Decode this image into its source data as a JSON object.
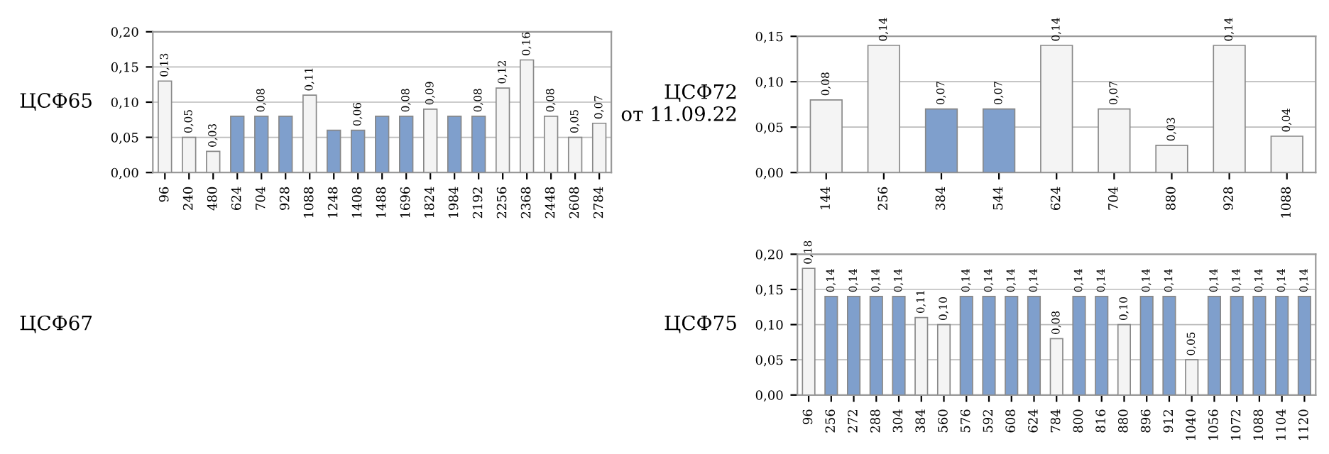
{
  "chart_data": [
    {
      "type": "bar",
      "ylabel": "ЦСФ65",
      "categories": [
        "96",
        "240",
        "480",
        "624",
        "704",
        "928",
        "1088",
        "1248",
        "1408",
        "1488",
        "1696",
        "1824",
        "1984",
        "2192",
        "2256",
        "2368",
        "2448",
        "2608",
        "2784"
      ],
      "values": [
        0.13,
        0.05,
        0.03,
        0.08,
        0.08,
        0.08,
        0.11,
        0.06,
        0.06,
        0.08,
        0.08,
        0.09,
        0.08,
        0.08,
        0.12,
        0.16,
        0.08,
        0.05,
        0.07
      ],
      "value_labels": [
        "0,13",
        "0,05",
        "0,03",
        null,
        "0,08",
        null,
        "0,11",
        null,
        "0,06",
        null,
        "0,08",
        "0,09",
        null,
        "0,08",
        "0,12",
        "0,16",
        "0,08",
        "0,05",
        "0,07"
      ],
      "colors": [
        "#f4f4f4",
        "#f4f4f4",
        "#f4f4f4",
        "#7f9fcc",
        "#7f9fcc",
        "#7f9fcc",
        "#f4f4f4",
        "#7f9fcc",
        "#7f9fcc",
        "#7f9fcc",
        "#7f9fcc",
        "#f4f4f4",
        "#7f9fcc",
        "#7f9fcc",
        "#f4f4f4",
        "#f4f4f4",
        "#f4f4f4",
        "#f4f4f4",
        "#f4f4f4"
      ],
      "ylim": [
        0,
        0.2
      ],
      "yticks": [
        {
          "value": 0,
          "label": "0,00"
        },
        {
          "value": 0.05,
          "label": "0,05"
        },
        {
          "value": 0.1,
          "label": "0,10"
        },
        {
          "value": 0.15,
          "label": "0,15"
        },
        {
          "value": 0.2,
          "label": "0,20"
        }
      ],
      "grid": "y"
    },
    {
      "type": "bar",
      "ylabel": "ЦСФ72\nот 11.09.22",
      "categories": [
        "144",
        "256",
        "384",
        "544",
        "624",
        "704",
        "880",
        "928",
        "1088"
      ],
      "values": [
        0.08,
        0.14,
        0.07,
        0.07,
        0.14,
        0.07,
        0.03,
        0.14,
        0.04
      ],
      "value_labels": [
        "0,08",
        "0,14",
        "0,07",
        "0,07",
        "0,14",
        "0,07",
        "0,03",
        "0,14",
        "0,04"
      ],
      "colors": [
        "#f4f4f4",
        "#f4f4f4",
        "#7f9fcc",
        "#7f9fcc",
        "#f4f4f4",
        "#f4f4f4",
        "#f4f4f4",
        "#f4f4f4",
        "#f4f4f4"
      ],
      "ylim": [
        0,
        0.15
      ],
      "yticks": [
        {
          "value": 0,
          "label": "0,00"
        },
        {
          "value": 0.05,
          "label": "0,05"
        },
        {
          "value": 0.1,
          "label": "0,10"
        },
        {
          "value": 0.15,
          "label": "0,15"
        }
      ],
      "grid": "y"
    },
    {
      "type": "other",
      "ylabel": "ЦСФ67"
    },
    {
      "type": "bar",
      "ylabel": "ЦСФ75",
      "categories": [
        "96",
        "256",
        "272",
        "288",
        "304",
        "384",
        "560",
        "576",
        "592",
        "608",
        "624",
        "784",
        "800",
        "816",
        "880",
        "896",
        "912",
        "1040",
        "1056",
        "1072",
        "1088",
        "1104",
        "1120"
      ],
      "values": [
        0.18,
        0.14,
        0.14,
        0.14,
        0.14,
        0.11,
        0.1,
        0.14,
        0.14,
        0.14,
        0.14,
        0.08,
        0.14,
        0.14,
        0.1,
        0.14,
        0.14,
        0.05,
        0.14,
        0.14,
        0.14,
        0.14,
        0.14
      ],
      "value_labels": [
        "0,18",
        "0,14",
        "0,14",
        "0,14",
        "0,14",
        "0,11",
        "0,10",
        "0,14",
        "0,14",
        "0,14",
        "0,14",
        "0,08",
        "0,14",
        "0,14",
        "0,10",
        "0,14",
        "0,14",
        "0,05",
        "0,14",
        "0,14",
        "0,14",
        "0,14",
        "0,14"
      ],
      "colors": [
        "#f4f4f4",
        "#7f9fcc",
        "#7f9fcc",
        "#7f9fcc",
        "#7f9fcc",
        "#f4f4f4",
        "#f4f4f4",
        "#7f9fcc",
        "#7f9fcc",
        "#7f9fcc",
        "#7f9fcc",
        "#f4f4f4",
        "#7f9fcc",
        "#7f9fcc",
        "#f4f4f4",
        "#7f9fcc",
        "#7f9fcc",
        "#f4f4f4",
        "#7f9fcc",
        "#7f9fcc",
        "#7f9fcc",
        "#7f9fcc",
        "#7f9fcc"
      ],
      "ylim": [
        0,
        0.2
      ],
      "yticks": [
        {
          "value": 0,
          "label": "0,00"
        },
        {
          "value": 0.05,
          "label": "0,05"
        },
        {
          "value": 0.1,
          "label": "0,10"
        },
        {
          "value": 0.15,
          "label": "0,15"
        },
        {
          "value": 0.2,
          "label": "0,20"
        }
      ],
      "grid": "y"
    }
  ]
}
